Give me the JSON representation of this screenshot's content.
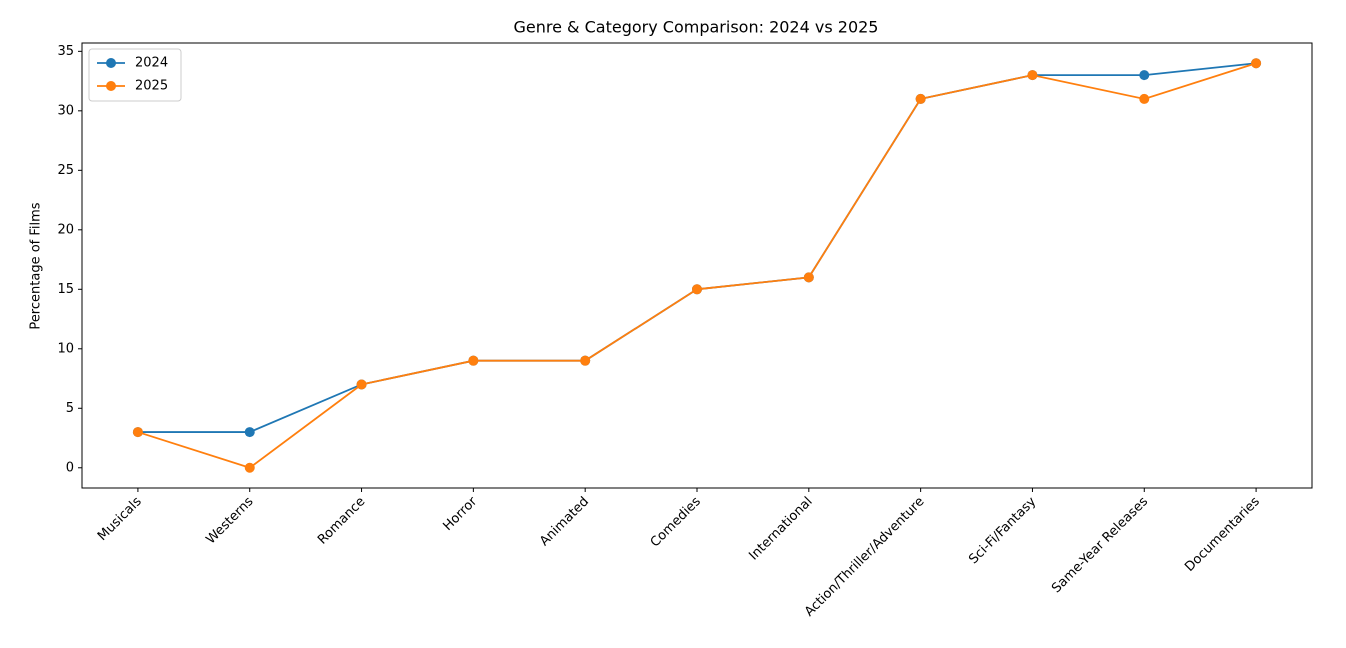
{
  "chart_data": {
    "type": "line",
    "title": "Genre & Category Comparison: 2024 vs 2025",
    "y_label": "Percentage of Films",
    "categories": [
      "Musicals",
      "Westerns",
      "Romance",
      "Horror",
      "Animated",
      "Comedies",
      "International",
      "Action/Thriller/Adventure",
      "Sci-Fi/Fantasy",
      "Same-Year Releases",
      "Documentaries"
    ],
    "series": [
      {
        "name": "2024",
        "color": "#1f77b4",
        "values": [
          3,
          3,
          7,
          9,
          9,
          15,
          16,
          31,
          33,
          33,
          34
        ]
      },
      {
        "name": "2025",
        "color": "#ff7f0e",
        "values": [
          3,
          0,
          7,
          9,
          9,
          15,
          16,
          31,
          33,
          31,
          34
        ]
      }
    ],
    "ylim": [
      -1.7,
      35.7
    ],
    "yticks": [
      0,
      5,
      10,
      15,
      20,
      25,
      30,
      35
    ],
    "legend": "upper left",
    "grid": false
  }
}
